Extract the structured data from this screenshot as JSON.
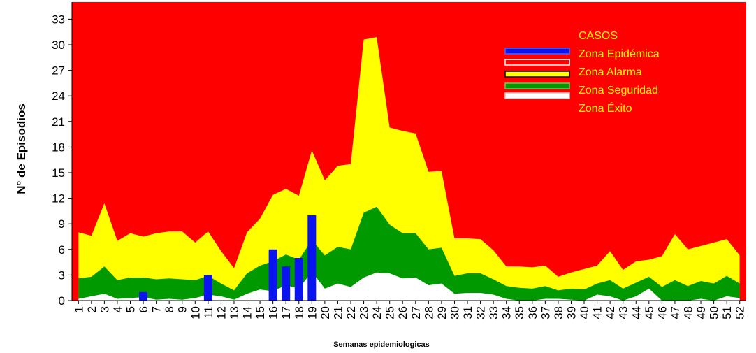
{
  "chart_data": {
    "type": "area",
    "ylabel": "N° de Episodios",
    "xlabel": "Semanas epidemiologicas",
    "ylim": [
      0,
      35
    ],
    "yticks": [
      0,
      3,
      6,
      9,
      12,
      15,
      18,
      21,
      24,
      27,
      30,
      33
    ],
    "grid": false,
    "legend": {
      "title": "CASOS",
      "placement": "top-right",
      "entries": [
        "Zona Epidémica",
        "Zona Alarma",
        "Zona Seguridad",
        "Zona Éxito"
      ]
    },
    "colors": {
      "casos": "#0a14f0",
      "epidemica": "#ff0000",
      "alarma": "#ffff00",
      "seguridad": "#009900",
      "exito": "#ffffff"
    },
    "categories": [
      "1",
      "2",
      "3",
      "4",
      "5",
      "6",
      "7",
      "8",
      "9",
      "10",
      "11",
      "12",
      "13",
      "14",
      "15",
      "16",
      "17",
      "18",
      "19",
      "20",
      "21",
      "22",
      "23",
      "24",
      "25",
      "26",
      "27",
      "28",
      "29",
      "30",
      "31",
      "32",
      "33",
      "34",
      "35",
      "36",
      "37",
      "38",
      "39",
      "40",
      "41",
      "42",
      "43",
      "44",
      "45",
      "46",
      "47",
      "48",
      "49",
      "50",
      "51",
      "52"
    ],
    "series": [
      {
        "name": "Zona Alarma",
        "values": [
          8.0,
          7.6,
          11.4,
          7.0,
          7.9,
          7.5,
          7.9,
          8.1,
          8.1,
          6.8,
          8.1,
          5.8,
          3.8,
          8.0,
          9.6,
          12.4,
          13.1,
          12.3,
          17.6,
          14.1,
          15.8,
          16.0,
          30.6,
          30.9,
          20.3,
          19.9,
          19.6,
          15.1,
          15.2,
          7.3,
          7.3,
          7.2,
          5.9,
          4.0,
          4.0,
          3.9,
          4.1,
          2.8,
          3.3,
          3.7,
          4.1,
          5.8,
          3.6,
          4.6,
          4.8,
          5.2,
          7.8,
          6.0,
          6.4,
          6.8,
          7.2,
          5.3
        ]
      },
      {
        "name": "Zona Seguridad",
        "values": [
          2.6,
          2.8,
          4.0,
          2.4,
          2.7,
          2.7,
          2.5,
          2.6,
          2.5,
          2.4,
          2.9,
          2.0,
          1.2,
          3.2,
          4.1,
          4.6,
          5.4,
          4.8,
          7.1,
          5.3,
          6.3,
          6.0,
          10.3,
          11.0,
          8.9,
          7.9,
          7.9,
          6.0,
          6.2,
          2.9,
          3.2,
          3.2,
          2.5,
          1.7,
          1.5,
          1.4,
          1.7,
          1.2,
          1.4,
          1.3,
          2.0,
          2.4,
          1.4,
          2.1,
          2.8,
          1.6,
          2.4,
          1.7,
          2.3,
          2.0,
          2.9,
          2.0
        ]
      },
      {
        "name": "Zona Éxito",
        "values": [
          0.2,
          0.5,
          0.8,
          0.2,
          0.3,
          0.4,
          0.1,
          0.2,
          0.1,
          0.3,
          0.7,
          0.5,
          0.1,
          0.8,
          1.3,
          1.1,
          1.8,
          1.4,
          3.4,
          1.4,
          2.0,
          1.6,
          2.7,
          3.3,
          3.2,
          2.6,
          2.7,
          1.8,
          2.0,
          0.8,
          0.9,
          0.9,
          0.7,
          0.2,
          0.0,
          0.0,
          0.2,
          0.2,
          0.1,
          0.0,
          0.7,
          0.5,
          0.0,
          0.5,
          1.4,
          0.0,
          0.0,
          0.0,
          0.2,
          0.0,
          0.5,
          0.3
        ]
      },
      {
        "name": "CASOS",
        "values": [
          0,
          0,
          0,
          0,
          0,
          1,
          0,
          0,
          0,
          0,
          3,
          0,
          0,
          0,
          0,
          6,
          4,
          5,
          10,
          0,
          0,
          0,
          0,
          0,
          0,
          0,
          0,
          0,
          0,
          0,
          0,
          0,
          0,
          0,
          0,
          0,
          0,
          0,
          0,
          0,
          0,
          0,
          0,
          0,
          0,
          0,
          0,
          0,
          0,
          0,
          0,
          0
        ]
      }
    ]
  }
}
